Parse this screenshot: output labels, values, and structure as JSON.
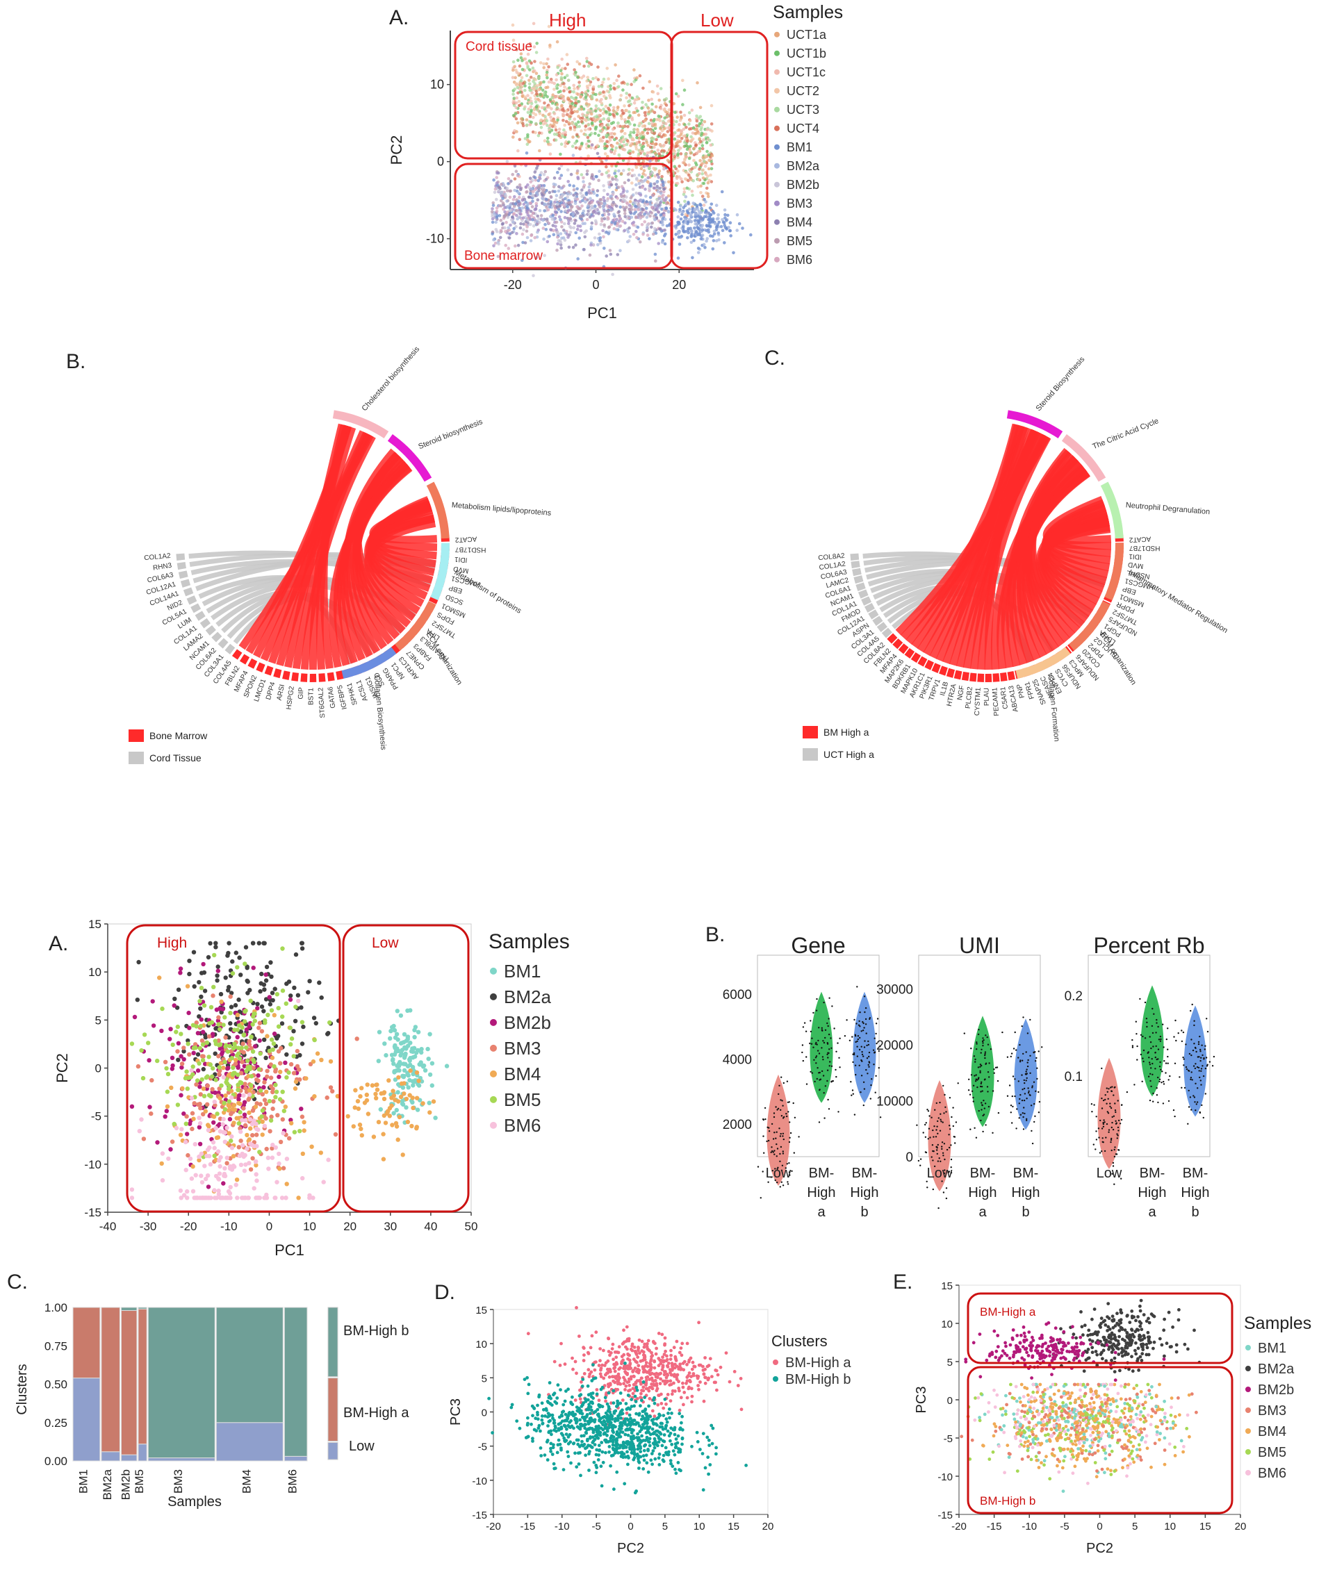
{
  "figure1": {
    "panel_a": {
      "letter": "A.",
      "region_high": "High",
      "region_low": "Low",
      "box_cord": "Cord tissue",
      "box_bone": "Bone marrow",
      "legend_title": "Samples",
      "legend": [
        {
          "name": "UCT1a",
          "color": "#e7a77a"
        },
        {
          "name": "UCT1b",
          "color": "#6cbf6a"
        },
        {
          "name": "UCT1c",
          "color": "#f0b9ae"
        },
        {
          "name": "UCT2",
          "color": "#f2c6a8"
        },
        {
          "name": "UCT3",
          "color": "#a9d9a0"
        },
        {
          "name": "UCT4",
          "color": "#d8705a"
        },
        {
          "name": "BM1",
          "color": "#6f8fcf"
        },
        {
          "name": "BM2a",
          "color": "#a8b8df"
        },
        {
          "name": "BM2b",
          "color": "#c9c5d8"
        },
        {
          "name": "BM3",
          "color": "#a18bc6"
        },
        {
          "name": "BM4",
          "color": "#8c80b0"
        },
        {
          "name": "BM5",
          "color": "#bb9bb0"
        },
        {
          "name": "BM6",
          "color": "#d7a8bf"
        }
      ]
    },
    "panel_b": {
      "letter": "B.",
      "genes": [
        "COL4A5",
        "FBLN2",
        "MFAP4",
        "SPON2",
        "LMCD1",
        "DPP4",
        "ARSI",
        "HSPG2",
        "GIP",
        "BST1",
        "ST6GAL2",
        "GATA6",
        "IGFBP5",
        "SPHK1",
        "ACSL1",
        "INSIG1",
        "SCD",
        "PPARG",
        "NPC1",
        "AKR1C3",
        "CPNE7",
        "FABP3",
        "TNFAIP8L3",
        "LIPA",
        "TM7SF2",
        "FDPS",
        "MSMO1",
        "SC5D",
        "EBP",
        "HMGCS1",
        "MVD",
        "IDI1",
        "HSD17B7",
        "ACAT2"
      ],
      "genes_top": [
        "COL3A1",
        "COL6A2",
        "NCAM1",
        "LAMA2",
        "COL1A1",
        "LUM",
        "COL5A1",
        "NID2",
        "COL14A1",
        "COL12A1",
        "COL6A3",
        "RHN3",
        "COL1A2"
      ],
      "terms": [
        "Cholesterol biosynthesis",
        "Steroid biosynthesis",
        "Metabolism lipids/lipoproteins",
        "Metabolism of proteins",
        "ECM organization",
        "Collagen Biosynthesis"
      ],
      "legend": [
        {
          "name": "Bone Marrow",
          "color": "#ff2a2a"
        },
        {
          "name": "Cord Tissue",
          "color": "#c8c8c8"
        }
      ]
    },
    "panel_c": {
      "letter": "C.",
      "genes": [
        "COL8A2",
        "FBLN2",
        "MFAP4",
        "MAP2K6",
        "BDKRB1",
        "MAPK10",
        "AKR1C1",
        "PIK3R1",
        "TRPV1",
        "IL1B",
        "HTR2A",
        "NGF",
        "PLCB2",
        "CYSTM1",
        "PLAU",
        "PECAM1",
        "C5AR1",
        "ABCA13",
        "PNP",
        "FPR1",
        "SNAP25",
        "NFASC",
        "ENPP4",
        "CYCS",
        "NDUFS6",
        "MPC3",
        "NDUFAF6",
        "COX20",
        "PDP2",
        "SUCLG2",
        "LDHA",
        "PGP1",
        "NDUFAF5",
        "TM7SF2",
        "PDPR",
        "MSMO1",
        "EBP",
        "HMGCS1",
        "NSDHL",
        "MVD",
        "IDI1",
        "HSD17B7",
        "ACAT2"
      ],
      "genes_top": [
        "COL4A5",
        "COL3A1",
        "ASPN",
        "COL12A1",
        "FMOD",
        "COL1A1",
        "NCAM1",
        "COL6A1",
        "LAMC2",
        "COL6A3",
        "COL1A2",
        "COL8A2"
      ],
      "terms": [
        "Steroid Biosynthesis",
        "The Citric Acid Cycle",
        "Neutrophil Degranulation",
        "Inflammatory Mediator Regulation",
        "ECM organization",
        "Collagen Formation"
      ],
      "legend": [
        {
          "name": "BM High a",
          "color": "#ff2a2a"
        },
        {
          "name": "UCT High a",
          "color": "#c8c8c8"
        }
      ]
    }
  },
  "figure2": {
    "panel_a": {
      "letter": "A.",
      "region_high": "High",
      "region_low": "Low",
      "legend_title": "Samples",
      "legend": [
        {
          "name": "BM1",
          "color": "#7fd6c8"
        },
        {
          "name": "BM2a",
          "color": "#3f3f3f"
        },
        {
          "name": "BM2b",
          "color": "#b3197a"
        },
        {
          "name": "BM3",
          "color": "#e8826f"
        },
        {
          "name": "BM4",
          "color": "#f0aa55"
        },
        {
          "name": "BM5",
          "color": "#a6d854"
        },
        {
          "name": "BM6",
          "color": "#f7c1dc"
        }
      ]
    },
    "panel_b": {
      "letter": "B.",
      "subplots": [
        {
          "title": "Gene",
          "categories": [
            "Low",
            "BM-High a",
            "BM-High b"
          ],
          "median": [
            1600,
            4150,
            4150
          ],
          "ticks": [
            2000,
            4000,
            6000
          ],
          "ylim": [
            1000,
            7200
          ]
        },
        {
          "title": "UMI",
          "categories": [
            "Low",
            "BM-High a",
            "BM-High b"
          ],
          "median": [
            2500,
            14000,
            13500
          ],
          "ticks": [
            0,
            10000,
            20000,
            30000
          ],
          "ylim": [
            0,
            36000
          ]
        },
        {
          "title": "Percent Rb",
          "categories": [
            "Low",
            "BM-High a",
            "BM-High b"
          ],
          "median": [
            0.045,
            0.135,
            0.11
          ],
          "ticks": [
            0.1,
            0.2
          ],
          "ylim": [
            0,
            0.25
          ]
        }
      ],
      "colors": [
        "#e8837a",
        "#23b24b",
        "#5b8fe0"
      ]
    },
    "panel_c": {
      "letter": "C.",
      "legend_labels": [
        "BM-High b",
        "BM-High a",
        "Low"
      ],
      "colors": {
        "BM-High b": "#6f9f97",
        "BM-High a": "#c97b6b",
        "Low": "#8f9fcc"
      }
    },
    "panel_d": {
      "letter": "D.",
      "legend_title": "Clusters",
      "legend": [
        {
          "name": "BM-High a",
          "color": "#f06a80"
        },
        {
          "name": "BM-High b",
          "color": "#12a39a"
        }
      ]
    },
    "panel_e": {
      "letter": "E.",
      "box_a": "BM-High a",
      "box_b": "BM-High b",
      "legend_title": "Samples",
      "legend": [
        {
          "name": "BM1",
          "color": "#7fd6c8"
        },
        {
          "name": "BM2a",
          "color": "#3f3f3f"
        },
        {
          "name": "BM2b",
          "color": "#b3197a"
        },
        {
          "name": "BM3",
          "color": "#e8826f"
        },
        {
          "name": "BM4",
          "color": "#f0aa55"
        },
        {
          "name": "BM5",
          "color": "#a6d854"
        },
        {
          "name": "BM6",
          "color": "#f7c1dc"
        }
      ]
    }
  },
  "chart_data": [
    {
      "type": "scatter",
      "title": "",
      "xlabel": "PC1",
      "ylabel": "PC2",
      "xlim": [
        -35,
        38
      ],
      "ylim": [
        -14,
        17
      ],
      "x_ticks": [
        -20,
        0,
        20
      ],
      "y_ticks": [
        -10,
        0,
        10
      ],
      "series": [
        {
          "name": "Cord tissue",
          "x_range": [
            -25,
            35
          ],
          "y_range": [
            -3,
            15
          ]
        },
        {
          "name": "Bone marrow",
          "x_range": [
            -30,
            35
          ],
          "y_range": [
            -13,
            -1
          ]
        }
      ]
    },
    {
      "type": "scatter",
      "xlabel": "PC1",
      "ylabel": "PC2",
      "xlim": [
        -40,
        50
      ],
      "ylim": [
        -15,
        15
      ],
      "x_ticks": [
        -40,
        -30,
        -20,
        -10,
        0,
        10,
        20,
        30,
        40,
        50
      ],
      "y_ticks": [
        -15,
        -10,
        -5,
        0,
        5,
        10,
        15
      ],
      "series": [
        {
          "name": "BM1",
          "x_center": 34,
          "y_center": 0
        },
        {
          "name": "BM2a",
          "x_center": -5,
          "y_center": 6
        },
        {
          "name": "BM2b",
          "x_center": -12,
          "y_center": 0
        },
        {
          "name": "BM3",
          "x_center": -8,
          "y_center": -2
        },
        {
          "name": "BM4",
          "x_center": -6,
          "y_center": -4
        },
        {
          "name": "BM5",
          "x_center": -10,
          "y_center": 1
        },
        {
          "name": "BM6",
          "x_center": -10,
          "y_center": -11
        }
      ]
    },
    {
      "type": "bar",
      "xlabel": "Samples",
      "ylabel": "Clusters",
      "categories": [
        "BM1",
        "BM2a",
        "BM2b",
        "BM5",
        "BM3",
        "BM4",
        "BM6"
      ],
      "widths": [
        0.1,
        0.07,
        0.06,
        0.035,
        0.24,
        0.24,
        0.085
      ],
      "series": [
        {
          "name": "Low",
          "values": [
            0.54,
            0.06,
            0.04,
            0.11,
            0.02,
            0.25,
            0.03
          ]
        },
        {
          "name": "BM-High a",
          "values": [
            0.46,
            0.94,
            0.94,
            0.88,
            0.0,
            0.0,
            0.0
          ]
        },
        {
          "name": "BM-High b",
          "values": [
            0.0,
            0.0,
            0.02,
            0.01,
            0.98,
            0.75,
            0.97
          ]
        }
      ],
      "ylim": [
        0,
        1
      ],
      "y_ticks": [
        "0.00",
        "0.25",
        "0.50",
        "0.75",
        "1.00"
      ]
    },
    {
      "type": "scatter",
      "xlabel": "PC2",
      "ylabel": "PC3",
      "xlim": [
        -20,
        20
      ],
      "ylim": [
        -15,
        15
      ],
      "x_ticks": [
        -20,
        -15,
        -10,
        -5,
        0,
        5,
        10,
        15,
        20
      ],
      "y_ticks": [
        -15,
        -10,
        -5,
        0,
        5,
        10,
        15
      ],
      "series": [
        {
          "name": "BM-High a",
          "x_center": 2,
          "y_center": 6
        },
        {
          "name": "BM-High b",
          "x_center": -3,
          "y_center": -3
        }
      ]
    },
    {
      "type": "scatter",
      "xlabel": "PC2",
      "ylabel": "PC3",
      "xlim": [
        -20,
        20
      ],
      "ylim": [
        -15,
        15
      ],
      "x_ticks": [
        -20,
        -15,
        -10,
        -5,
        0,
        5,
        10,
        15,
        20
      ],
      "y_ticks": [
        -15,
        -10,
        -5,
        0,
        5,
        10,
        15
      ]
    }
  ]
}
